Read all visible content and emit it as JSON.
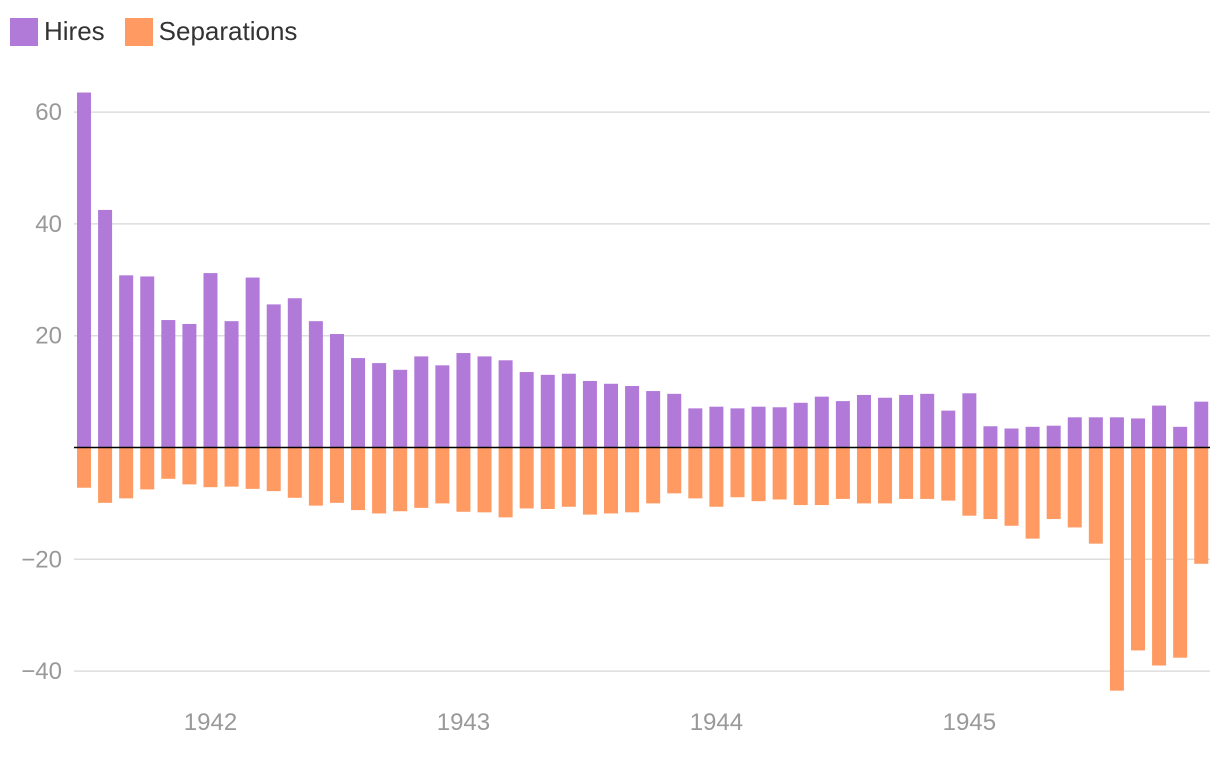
{
  "chart_data": {
    "type": "bar",
    "title": "",
    "xlabel": "",
    "ylabel": "",
    "ylim": [
      -45,
      66
    ],
    "yticks": [
      60,
      40,
      20,
      -20,
      -40
    ],
    "ytick_labels": [
      "60",
      "40",
      "20",
      "−20",
      "−40"
    ],
    "xtick_labels": [
      "1942",
      "1943",
      "1944",
      "1945"
    ],
    "xtick_months_index": [
      6,
      18,
      30,
      42
    ],
    "start": "1941-07",
    "legend_position": "top-left",
    "colors": {
      "hires": "#b27ad8",
      "separations": "#ff9a62",
      "grid": "#dddddd",
      "zero": "#000000"
    },
    "series": [
      {
        "name": "Hires",
        "values": [
          63.5,
          42.5,
          30.8,
          30.6,
          22.8,
          22.1,
          31.2,
          22.6,
          30.4,
          25.6,
          26.7,
          22.6,
          20.3,
          16.0,
          15.1,
          13.9,
          16.3,
          14.7,
          16.9,
          16.3,
          15.6,
          13.5,
          13.0,
          13.2,
          11.9,
          11.4,
          11.0,
          10.1,
          9.6,
          7.0,
          7.3,
          7.0,
          7.3,
          7.2,
          8.0,
          9.1,
          8.3,
          9.4,
          8.9,
          9.4,
          9.6,
          6.6,
          9.7,
          3.8,
          3.4,
          3.7,
          3.9,
          5.4,
          5.4,
          5.4,
          5.2,
          7.5,
          3.7,
          8.2
        ]
      },
      {
        "name": "Separations",
        "values": [
          -7.2,
          -9.9,
          -9.1,
          -7.5,
          -5.6,
          -6.6,
          -7.1,
          -7.0,
          -7.4,
          -7.8,
          -9.0,
          -10.4,
          -9.9,
          -11.2,
          -11.8,
          -11.4,
          -10.8,
          -10.0,
          -11.5,
          -11.6,
          -12.5,
          -10.9,
          -11.0,
          -10.6,
          -12.0,
          -11.8,
          -11.6,
          -10.0,
          -8.2,
          -9.1,
          -10.6,
          -8.9,
          -9.6,
          -9.3,
          -10.3,
          -10.3,
          -9.2,
          -10.0,
          -10.0,
          -9.2,
          -9.2,
          -9.5,
          -12.2,
          -12.8,
          -14.0,
          -16.3,
          -12.8,
          -14.3,
          -17.2,
          -43.5,
          -36.3,
          -39.0,
          -37.6,
          -20.8
        ]
      }
    ]
  }
}
